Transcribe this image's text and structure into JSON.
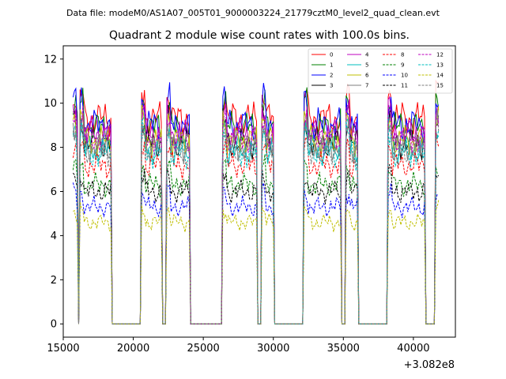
{
  "chart_data": {
    "type": "line",
    "suptitle": "Data file: modeM0/AS1A07_005T01_9000003224_21779cztM0_level2_quad_clean.evt",
    "title": "Quadrant 2 module wise count rates with 100.0s bins.",
    "xlabel": "",
    "ylabel": "",
    "x_offset_label": "+3.082e8",
    "xlim": [
      15000,
      43000
    ],
    "ylim": [
      -0.6,
      12.6
    ],
    "xticks": [
      15000,
      20000,
      25000,
      30000,
      35000,
      40000
    ],
    "yticks": [
      0,
      2,
      4,
      6,
      8,
      10,
      12
    ],
    "legend_location": "upper right",
    "on_intervals": [
      [
        15700,
        16000
      ],
      [
        16200,
        18400
      ],
      [
        20600,
        22000
      ],
      [
        22400,
        24000
      ],
      [
        26400,
        28800
      ],
      [
        29200,
        30000
      ],
      [
        32200,
        34800
      ],
      [
        35200,
        36000
      ],
      [
        38200,
        40800
      ],
      [
        41600,
        41800
      ]
    ],
    "series": [
      {
        "name": "0",
        "color": "#ff0000",
        "dash": "solid",
        "level": 9.3
      },
      {
        "name": "1",
        "color": "#008000",
        "dash": "solid",
        "level": 8.9
      },
      {
        "name": "2",
        "color": "#0000ff",
        "dash": "solid",
        "level": 9.0
      },
      {
        "name": "3",
        "color": "#000000",
        "dash": "solid",
        "level": 8.2
      },
      {
        "name": "4",
        "color": "#bf00bf",
        "dash": "solid",
        "level": 8.6
      },
      {
        "name": "5",
        "color": "#00bfbf",
        "dash": "solid",
        "level": 7.9
      },
      {
        "name": "6",
        "color": "#bfbf00",
        "dash": "solid",
        "level": 8.3
      },
      {
        "name": "7",
        "color": "#7f7f7f",
        "dash": "solid",
        "level": 8.0
      },
      {
        "name": "8",
        "color": "#ff0000",
        "dash": "dashed",
        "level": 7.2
      },
      {
        "name": "9",
        "color": "#008000",
        "dash": "dashed",
        "level": 6.3
      },
      {
        "name": "10",
        "color": "#0000ff",
        "dash": "dashed",
        "level": 5.3
      },
      {
        "name": "11",
        "color": "#000000",
        "dash": "dashed",
        "level": 6.0
      },
      {
        "name": "12",
        "color": "#bf00bf",
        "dash": "dashed",
        "level": 8.4
      },
      {
        "name": "13",
        "color": "#00bfbf",
        "dash": "dashed",
        "level": 7.7
      },
      {
        "name": "14",
        "color": "#bfbf00",
        "dash": "dashed",
        "level": 4.6
      },
      {
        "name": "15",
        "color": "#7f7f7f",
        "dash": "dashed",
        "level": 7.9
      }
    ]
  }
}
